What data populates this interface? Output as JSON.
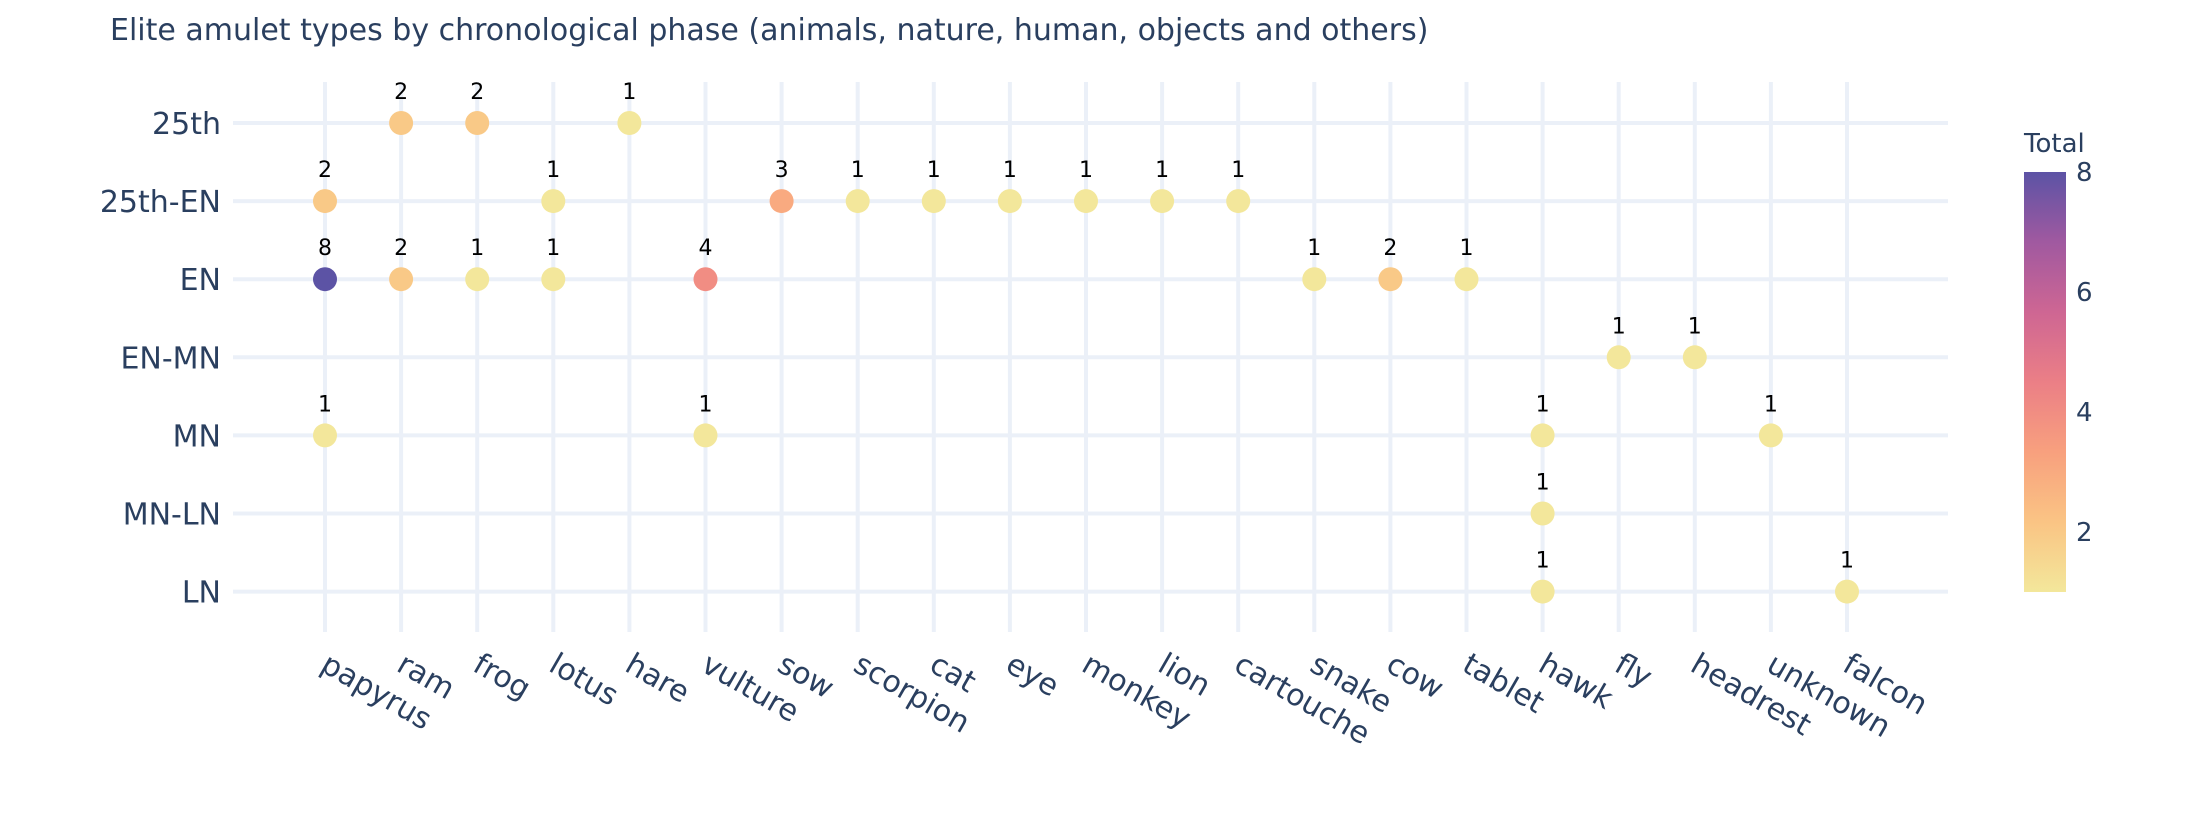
{
  "chart_data": {
    "type": "scatter",
    "title": "Elite amulet types by chronological phase (animals, nature, human, objects and others)",
    "x_categories": [
      "papyrus",
      "ram",
      "frog",
      "lotus",
      "hare",
      "vulture",
      "sow",
      "scorpion",
      "cat",
      "eye",
      "monkey",
      "lion",
      "cartouche",
      "snake",
      "cow",
      "tablet",
      "hawk",
      "fly",
      "headrest",
      "unknown",
      "falcon"
    ],
    "y_categories": [
      "25th",
      "25th-EN",
      "EN",
      "EN-MN",
      "MN",
      "MN-LN",
      "LN"
    ],
    "points": [
      {
        "x": "ram",
        "y": "25th",
        "total": 2
      },
      {
        "x": "frog",
        "y": "25th",
        "total": 2
      },
      {
        "x": "hare",
        "y": "25th",
        "total": 1
      },
      {
        "x": "papyrus",
        "y": "25th-EN",
        "total": 2
      },
      {
        "x": "lotus",
        "y": "25th-EN",
        "total": 1
      },
      {
        "x": "sow",
        "y": "25th-EN",
        "total": 3
      },
      {
        "x": "scorpion",
        "y": "25th-EN",
        "total": 1
      },
      {
        "x": "cat",
        "y": "25th-EN",
        "total": 1
      },
      {
        "x": "eye",
        "y": "25th-EN",
        "total": 1
      },
      {
        "x": "monkey",
        "y": "25th-EN",
        "total": 1
      },
      {
        "x": "lion",
        "y": "25th-EN",
        "total": 1
      },
      {
        "x": "cartouche",
        "y": "25th-EN",
        "total": 1
      },
      {
        "x": "papyrus",
        "y": "EN",
        "total": 8
      },
      {
        "x": "ram",
        "y": "EN",
        "total": 2
      },
      {
        "x": "frog",
        "y": "EN",
        "total": 1
      },
      {
        "x": "lotus",
        "y": "EN",
        "total": 1
      },
      {
        "x": "vulture",
        "y": "EN",
        "total": 4
      },
      {
        "x": "snake",
        "y": "EN",
        "total": 1
      },
      {
        "x": "cow",
        "y": "EN",
        "total": 2
      },
      {
        "x": "tablet",
        "y": "EN",
        "total": 1
      },
      {
        "x": "fly",
        "y": "EN-MN",
        "total": 1
      },
      {
        "x": "headrest",
        "y": "EN-MN",
        "total": 1
      },
      {
        "x": "papyrus",
        "y": "MN",
        "total": 1
      },
      {
        "x": "vulture",
        "y": "MN",
        "total": 1
      },
      {
        "x": "hawk",
        "y": "MN",
        "total": 1
      },
      {
        "x": "unknown",
        "y": "MN",
        "total": 1
      },
      {
        "x": "hawk",
        "y": "MN-LN",
        "total": 1
      },
      {
        "x": "hawk",
        "y": "LN",
        "total": 1
      },
      {
        "x": "falcon",
        "y": "LN",
        "total": 1
      }
    ],
    "colorbar": {
      "title": "Total",
      "range": [
        1,
        8
      ],
      "ticks": [
        2,
        4,
        6,
        8
      ],
      "colorscale": [
        "#f3e79b",
        "#fac484",
        "#f8a07e",
        "#eb7f86",
        "#ce6693",
        "#a059a0",
        "#5c53a5"
      ]
    },
    "grid": true,
    "legend": "none"
  }
}
